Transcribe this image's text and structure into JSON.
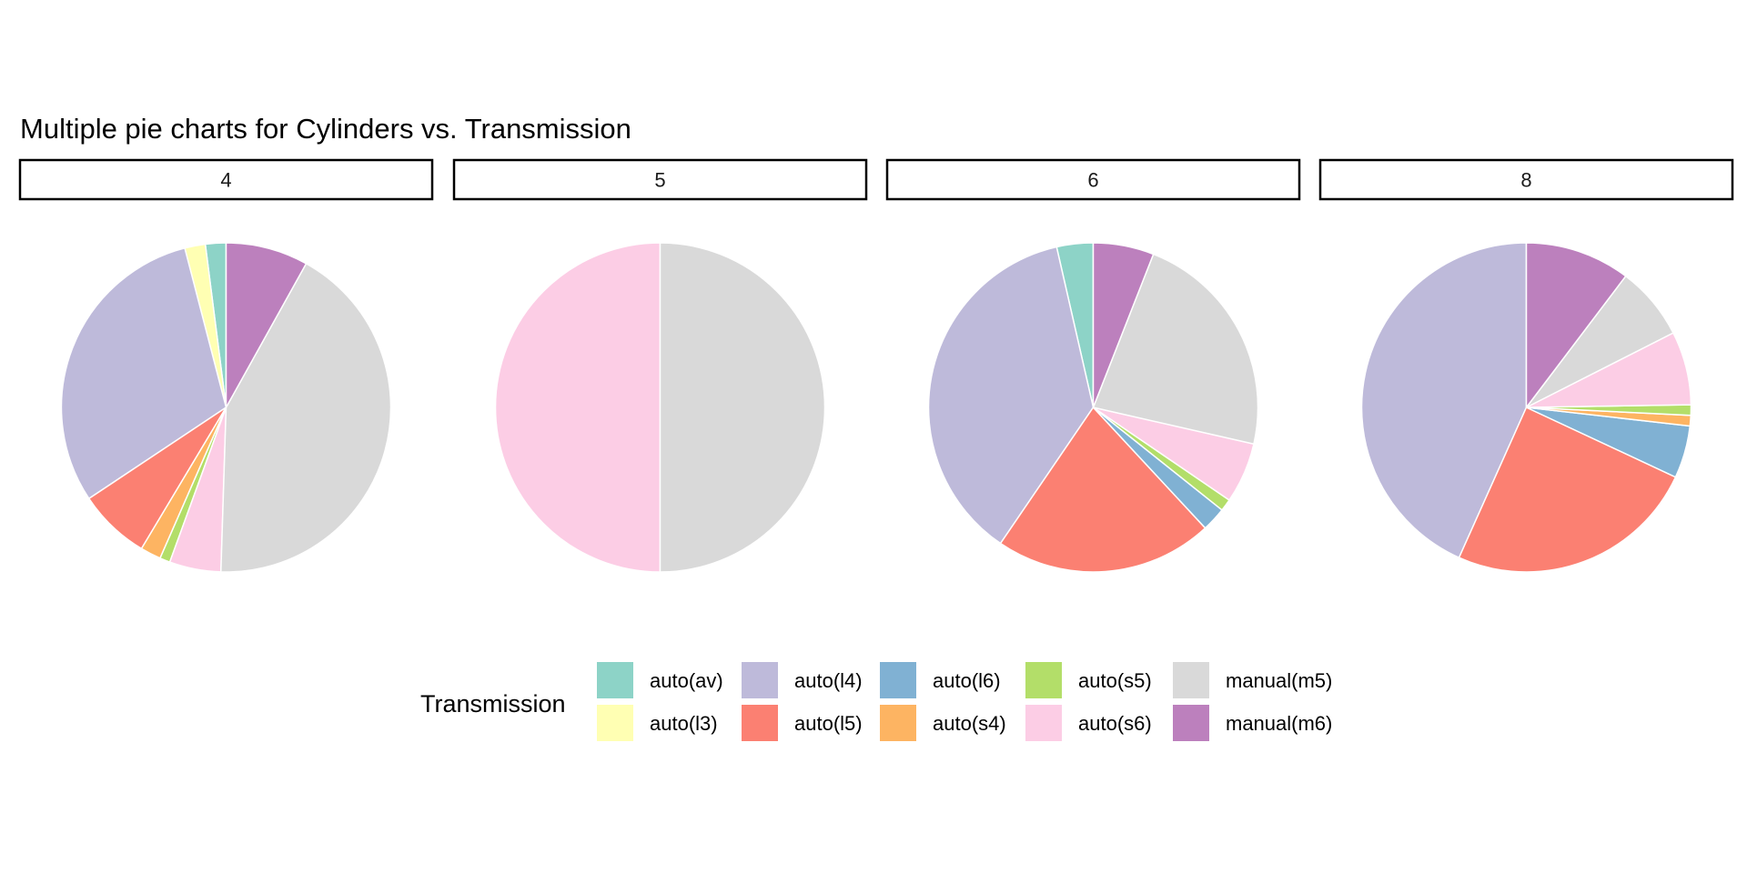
{
  "chart_data": {
    "type": "pie",
    "title": "Multiple pie charts for Cylinders vs. Transmission",
    "legend_title": "Transmission",
    "legend_position": "bottom",
    "categories": [
      "auto(av)",
      "auto(l3)",
      "auto(l4)",
      "auto(l5)",
      "auto(l6)",
      "auto(s4)",
      "auto(s5)",
      "auto(s6)",
      "manual(m5)",
      "manual(m6)"
    ],
    "colors": {
      "auto(av)": "#8DD3C7",
      "auto(l3)": "#FFFFB3",
      "auto(l4)": "#BEBADA",
      "auto(l5)": "#FB8072",
      "auto(l6)": "#80B1D3",
      "auto(s4)": "#FDB462",
      "auto(s5)": "#B3DE69",
      "auto(s6)": "#FCCDE5",
      "manual(m5)": "#D9D9D9",
      "manual(m6)": "#BC80BD"
    },
    "facets": [
      {
        "label": "4",
        "slices": [
          {
            "category": "auto(av)",
            "value": 2
          },
          {
            "category": "auto(l3)",
            "value": 2
          },
          {
            "category": "auto(l4)",
            "value": 30
          },
          {
            "category": "auto(l5)",
            "value": 7
          },
          {
            "category": "auto(l6)",
            "value": 0
          },
          {
            "category": "auto(s4)",
            "value": 2
          },
          {
            "category": "auto(s5)",
            "value": 1
          },
          {
            "category": "auto(s6)",
            "value": 5
          },
          {
            "category": "manual(m5)",
            "value": 42
          },
          {
            "category": "manual(m6)",
            "value": 8
          }
        ]
      },
      {
        "label": "5",
        "slices": [
          {
            "category": "auto(s6)",
            "value": 2
          },
          {
            "category": "manual(m5)",
            "value": 2
          }
        ]
      },
      {
        "label": "6",
        "slices": [
          {
            "category": "auto(av)",
            "value": 3
          },
          {
            "category": "auto(l4)",
            "value": 31
          },
          {
            "category": "auto(l5)",
            "value": 18
          },
          {
            "category": "auto(l6)",
            "value": 2
          },
          {
            "category": "auto(s5)",
            "value": 1
          },
          {
            "category": "auto(s6)",
            "value": 5
          },
          {
            "category": "manual(m5)",
            "value": 19
          },
          {
            "category": "manual(m6)",
            "value": 5
          }
        ]
      },
      {
        "label": "8",
        "slices": [
          {
            "category": "auto(l4)",
            "value": 42
          },
          {
            "category": "auto(l5)",
            "value": 24
          },
          {
            "category": "auto(l6)",
            "value": 5
          },
          {
            "category": "auto(s4)",
            "value": 1
          },
          {
            "category": "auto(s5)",
            "value": 1
          },
          {
            "category": "auto(s6)",
            "value": 7
          },
          {
            "category": "manual(m5)",
            "value": 7
          },
          {
            "category": "manual(m6)",
            "value": 10
          }
        ]
      }
    ]
  }
}
